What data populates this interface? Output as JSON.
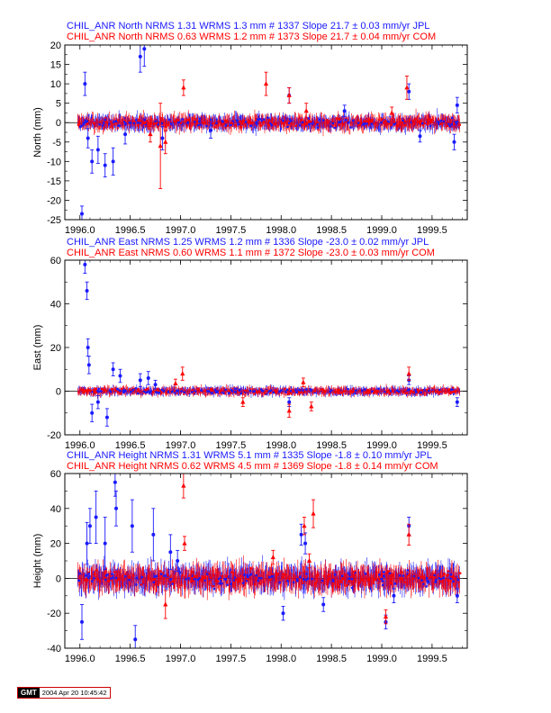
{
  "colors": {
    "series_a": "#1a1aff",
    "series_b": "#ff0000",
    "axis": "#000000"
  },
  "footer": {
    "logo": "GMT",
    "timestamp": "2004 Apr 20 10:45:42"
  },
  "chart_data": [
    {
      "type": "scatter",
      "ylabel": "North (mm)",
      "ylim": [
        -25,
        20
      ],
      "xlim": [
        1995.85,
        1999.85
      ],
      "yticks": [
        -25,
        -20,
        -15,
        -10,
        -5,
        0,
        5,
        10,
        15,
        20
      ],
      "xticks": [
        1996.0,
        1996.5,
        1997.0,
        1997.5,
        1998.0,
        1998.5,
        1999.0,
        1999.5
      ],
      "legend": [
        "CHIL_ANR North NRMS 1.31 WRMS  1.3 mm # 1337 Slope   21.7 ±  0.03 mm/yr JPL",
        "CHIL_ANR North NRMS 0.63 WRMS  1.2 mm # 1373 Slope   21.7 ±  0.04 mm/yr COM"
      ],
      "series": [
        {
          "marker": "circle",
          "color": "#1a1aff",
          "points": [
            [
              1996.02,
              -23.5,
              2.0
            ],
            [
              1996.05,
              10.0,
              3.0
            ],
            [
              1996.08,
              -4.0,
              2.5
            ],
            [
              1996.12,
              -10.0,
              3.0
            ],
            [
              1996.18,
              -7.0,
              3.5
            ],
            [
              1996.25,
              -11.0,
              3.0
            ],
            [
              1996.33,
              -10.0,
              3.5
            ],
            [
              1996.45,
              -3.0,
              2.5
            ],
            [
              1996.6,
              17.0,
              4.0
            ],
            [
              1996.64,
              19.0,
              4.5
            ],
            [
              1996.82,
              -4.0,
              3.0
            ],
            [
              1997.3,
              -2.0,
              2.0
            ],
            [
              1998.08,
              7.0,
              2.0
            ],
            [
              1999.27,
              8.0,
              2.0
            ],
            [
              1999.75,
              4.5,
              2.0
            ],
            [
              1999.72,
              -5.0,
              2.0
            ],
            [
              1998.63,
              3.0,
              1.5
            ],
            [
              1999.38,
              -3.5,
              1.5
            ]
          ]
        },
        {
          "marker": "triangle",
          "color": "#ff0000",
          "points": [
            [
              1996.8,
              -6.0,
              11.0
            ],
            [
              1996.85,
              -5.0,
              3.0
            ],
            [
              1997.03,
              9.0,
              2.0
            ],
            [
              1997.85,
              10.0,
              3.0
            ],
            [
              1998.08,
              7.0,
              2.0
            ],
            [
              1998.25,
              3.0,
              2.0
            ],
            [
              1999.25,
              9.0,
              3.0
            ],
            [
              1996.7,
              -3.0,
              2.0
            ],
            [
              1999.1,
              2.5,
              1.5
            ]
          ]
        }
      ]
    },
    {
      "type": "scatter",
      "ylabel": "East (mm)",
      "ylim": [
        -20,
        60
      ],
      "xlim": [
        1995.85,
        1999.85
      ],
      "yticks": [
        -20,
        0,
        20,
        40,
        60
      ],
      "xticks": [
        1996.0,
        1996.5,
        1997.0,
        1997.5,
        1998.0,
        1998.5,
        1999.0,
        1999.5
      ],
      "legend": [
        "CHIL_ANR East NRMS 1.25 WRMS  1.2 mm # 1336 Slope  -23.0 ±  0.02 mm/yr JPL",
        "CHIL_ANR East NRMS 0.60 WRMS  1.1 mm # 1372 Slope  -23.0 ±  0.03 mm/yr COM"
      ],
      "series": [
        {
          "marker": "circle",
          "color": "#1a1aff",
          "points": [
            [
              1996.05,
              58.0,
              4.0
            ],
            [
              1996.07,
              46.0,
              4.0
            ],
            [
              1996.08,
              20.0,
              4.0
            ],
            [
              1996.09,
              12.0,
              4.0
            ],
            [
              1996.12,
              -10.0,
              4.0
            ],
            [
              1996.18,
              -5.0,
              3.0
            ],
            [
              1996.27,
              -12.0,
              4.0
            ],
            [
              1996.33,
              10.0,
              3.0
            ],
            [
              1996.4,
              7.0,
              3.0
            ],
            [
              1996.6,
              5.0,
              3.0
            ],
            [
              1996.68,
              6.0,
              3.0
            ],
            [
              1996.75,
              3.0,
              2.0
            ],
            [
              1998.08,
              -5.0,
              2.0
            ],
            [
              1999.75,
              -5.0,
              2.0
            ],
            [
              1999.27,
              5.0,
              2.0
            ]
          ]
        },
        {
          "marker": "triangle",
          "color": "#ff0000",
          "points": [
            [
              1997.02,
              8.0,
              3.0
            ],
            [
              1998.08,
              -9.0,
              3.0
            ],
            [
              1998.22,
              4.0,
              2.0
            ],
            [
              1998.3,
              -7.0,
              2.0
            ],
            [
              1999.27,
              8.0,
              3.0
            ],
            [
              1996.95,
              3.5,
              2.0
            ],
            [
              1997.62,
              -5.0,
              2.0
            ]
          ]
        }
      ]
    },
    {
      "type": "scatter",
      "ylabel": "Height (mm)",
      "ylim": [
        -40,
        60
      ],
      "xlim": [
        1995.85,
        1999.85
      ],
      "yticks": [
        -40,
        -20,
        0,
        20,
        40,
        60
      ],
      "xticks": [
        1996.0,
        1996.5,
        1997.0,
        1997.5,
        1998.0,
        1998.5,
        1999.0,
        1999.5
      ],
      "legend": [
        "CHIL_ANR Height NRMS 1.31 WRMS  5.1 mm # 1335 Slope   -1.8 ±  0.10 mm/yr JPL",
        "CHIL_ANR Height NRMS 0.62 WRMS  4.5 mm # 1369 Slope   -1.8 ±  0.14 mm/yr COM"
      ],
      "series": [
        {
          "marker": "circle",
          "color": "#1a1aff",
          "points": [
            [
              1996.02,
              -25.0,
              10.0
            ],
            [
              1996.07,
              20.0,
              12.0
            ],
            [
              1996.1,
              30.0,
              10.0
            ],
            [
              1996.16,
              35.0,
              15.0
            ],
            [
              1996.25,
              20.0,
              15.0
            ],
            [
              1996.35,
              55.0,
              8.0
            ],
            [
              1996.36,
              40.0,
              10.0
            ],
            [
              1996.52,
              30.0,
              15.0
            ],
            [
              1996.55,
              -35.0,
              8.0
            ],
            [
              1996.73,
              25.0,
              15.0
            ],
            [
              1996.9,
              15.0,
              10.0
            ],
            [
              1996.97,
              10.0,
              6.0
            ],
            [
              1998.2,
              25.0,
              6.0
            ],
            [
              1998.24,
              20.0,
              6.0
            ],
            [
              1998.02,
              -20.0,
              4.0
            ],
            [
              1999.04,
              -25.0,
              4.0
            ],
            [
              1999.27,
              30.0,
              5.0
            ],
            [
              1999.12,
              -10.0,
              4.0
            ],
            [
              1998.42,
              -15.0,
              4.0
            ],
            [
              1999.75,
              -10.0,
              4.0
            ]
          ]
        },
        {
          "marker": "triangle",
          "color": "#ff0000",
          "points": [
            [
              1997.03,
              53.0,
              7.0
            ],
            [
              1997.04,
              20.0,
              4.0
            ],
            [
              1998.23,
              30.0,
              5.0
            ],
            [
              1998.32,
              37.0,
              8.0
            ],
            [
              1998.28,
              10.0,
              4.0
            ],
            [
              1999.04,
              -22.0,
              4.0
            ],
            [
              1999.27,
              25.0,
              6.0
            ],
            [
              1996.85,
              -15.0,
              8.0
            ],
            [
              1997.92,
              12.0,
              4.0
            ]
          ]
        }
      ]
    }
  ]
}
